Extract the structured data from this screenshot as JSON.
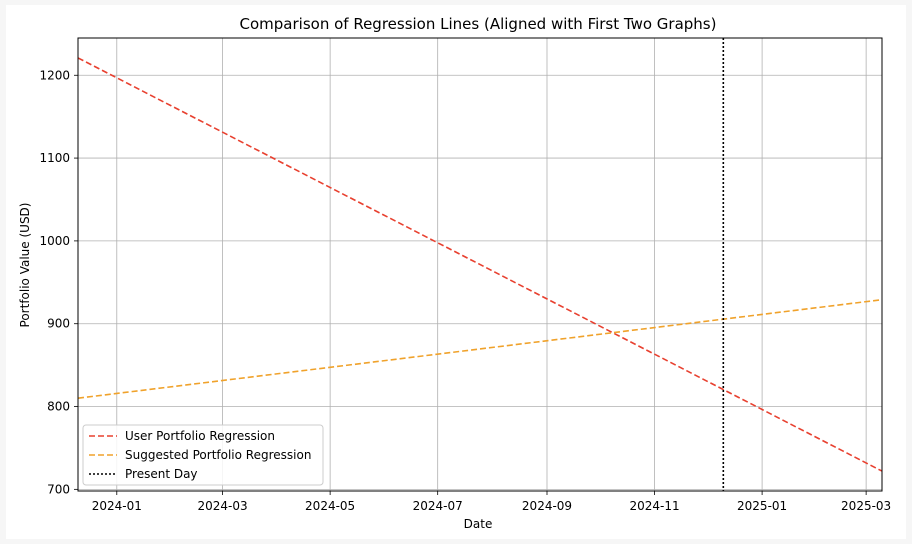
{
  "chart_data": {
    "type": "line",
    "title": "Comparison of Regression Lines (Aligned with First Two Graphs)",
    "xlabel": "Date",
    "ylabel": "Portfolio Value (USD)",
    "x_type": "date",
    "xlim": [
      "2023-12-10",
      "2025-03-10"
    ],
    "ylim": [
      698,
      1245
    ],
    "x_ticks": [
      "2024-01",
      "2024-03",
      "2024-05",
      "2024-07",
      "2024-09",
      "2024-11",
      "2025-01",
      "2025-03"
    ],
    "y_ticks": [
      700,
      800,
      900,
      1000,
      1100,
      1200
    ],
    "grid": true,
    "legend_position": "lower-left",
    "series": [
      {
        "name": "User Portfolio Regression",
        "color": "#e8402f",
        "style": "dashed",
        "x": [
          "2023-12-10",
          "2025-03-10"
        ],
        "y": [
          1221,
          722
        ]
      },
      {
        "name": "Suggested Portfolio Regression",
        "color": "#f0a22b",
        "style": "dashed",
        "x": [
          "2023-12-10",
          "2025-03-10"
        ],
        "y": [
          810,
          929
        ]
      }
    ],
    "vlines": [
      {
        "name": "Present Day",
        "color": "#000000",
        "style": "dotted",
        "x": "2024-12-10"
      }
    ]
  }
}
